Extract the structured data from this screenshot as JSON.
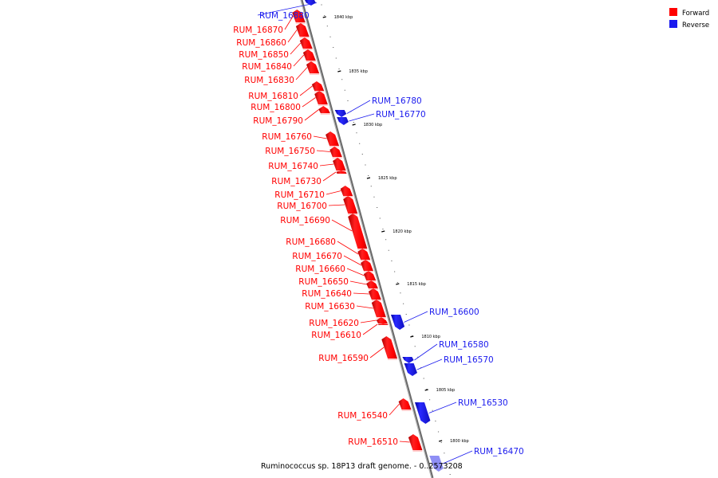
{
  "colors": {
    "forward": "#ff0000",
    "reverse": "#1a1aee",
    "reverse_light": "#8f8ff5",
    "backbone": "#707070"
  },
  "legend": {
    "items": [
      {
        "label": "Forward",
        "color": "#ff0000"
      },
      {
        "label": "Reverse",
        "color": "#1a1aee"
      }
    ]
  },
  "footer": {
    "caption": "Ruminococcus sp. 18P13 draft genome. - 0..2573208"
  },
  "ticks": [
    "1840 kbp",
    "1835 kbp",
    "1830 kbp",
    "1825 kbp",
    "1820 kbp",
    "1815 kbp",
    "1810 kbp",
    "1805 kbp",
    "1800 kbp"
  ],
  "genes": [
    {
      "name": "RUM_16880",
      "strand": "reverse"
    },
    {
      "name": "RUM_16870",
      "strand": "forward"
    },
    {
      "name": "RUM_16860",
      "strand": "forward"
    },
    {
      "name": "RUM_16850",
      "strand": "forward"
    },
    {
      "name": "RUM_16840",
      "strand": "forward"
    },
    {
      "name": "RUM_16830",
      "strand": "forward"
    },
    {
      "name": "RUM_16810",
      "strand": "forward"
    },
    {
      "name": "RUM_16800",
      "strand": "forward"
    },
    {
      "name": "RUM_16790",
      "strand": "forward"
    },
    {
      "name": "RUM_16780",
      "strand": "reverse"
    },
    {
      "name": "RUM_16770",
      "strand": "reverse"
    },
    {
      "name": "RUM_16760",
      "strand": "forward"
    },
    {
      "name": "RUM_16750",
      "strand": "forward"
    },
    {
      "name": "RUM_16740",
      "strand": "forward"
    },
    {
      "name": "RUM_16730",
      "strand": "forward"
    },
    {
      "name": "RUM_16710",
      "strand": "forward"
    },
    {
      "name": "RUM_16700",
      "strand": "forward"
    },
    {
      "name": "RUM_16690",
      "strand": "forward"
    },
    {
      "name": "RUM_16680",
      "strand": "forward"
    },
    {
      "name": "RUM_16670",
      "strand": "forward"
    },
    {
      "name": "RUM_16660",
      "strand": "forward"
    },
    {
      "name": "RUM_16650",
      "strand": "forward"
    },
    {
      "name": "RUM_16640",
      "strand": "forward"
    },
    {
      "name": "RUM_16630",
      "strand": "forward"
    },
    {
      "name": "RUM_16620",
      "strand": "forward"
    },
    {
      "name": "RUM_16610",
      "strand": "forward"
    },
    {
      "name": "RUM_16600",
      "strand": "reverse"
    },
    {
      "name": "RUM_16590",
      "strand": "forward"
    },
    {
      "name": "RUM_16580",
      "strand": "reverse"
    },
    {
      "name": "RUM_16570",
      "strand": "reverse"
    },
    {
      "name": "RUM_16540",
      "strand": "forward"
    },
    {
      "name": "RUM_16530",
      "strand": "reverse"
    },
    {
      "name": "RUM_16510",
      "strand": "forward"
    },
    {
      "name": "RUM_16470",
      "strand": "reverse"
    }
  ]
}
